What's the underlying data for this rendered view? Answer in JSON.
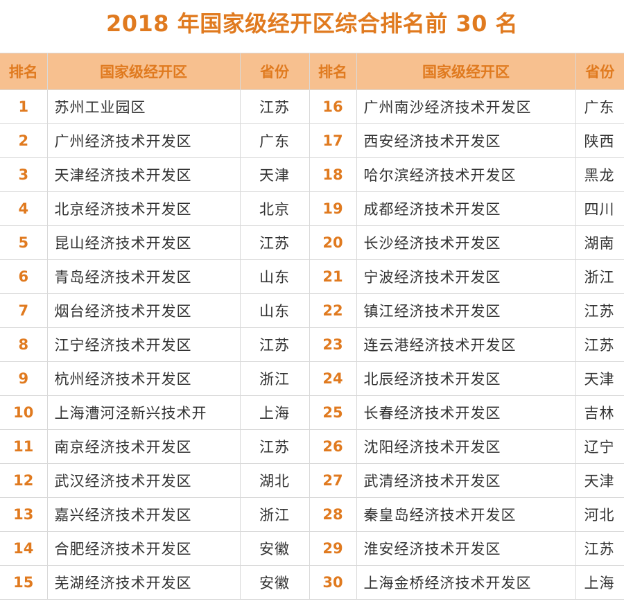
{
  "title": "2018 年国家级经开区综合排名前 30 名",
  "colors": {
    "accent": "#e07a1f",
    "header_bg": "#f7c08f",
    "text": "#333333",
    "grid": "#d9d9d9"
  },
  "table": {
    "headers": [
      "排名",
      "国家级经开区",
      "省份",
      "排名",
      "国家级经开区",
      "省份"
    ],
    "left": [
      {
        "rank": "1",
        "zone": "苏州工业园区",
        "province": "江苏"
      },
      {
        "rank": "2",
        "zone": "广州经济技术开发区",
        "province": "广东"
      },
      {
        "rank": "3",
        "zone": "天津经济技术开发区",
        "province": "天津"
      },
      {
        "rank": "4",
        "zone": "北京经济技术开发区",
        "province": "北京"
      },
      {
        "rank": "5",
        "zone": "昆山经济技术开发区",
        "province": "江苏"
      },
      {
        "rank": "6",
        "zone": "青岛经济技术开发区",
        "province": "山东"
      },
      {
        "rank": "7",
        "zone": "烟台经济技术开发区",
        "province": "山东"
      },
      {
        "rank": "8",
        "zone": "江宁经济技术开发区",
        "province": "江苏"
      },
      {
        "rank": "9",
        "zone": "杭州经济技术开发区",
        "province": "浙江"
      },
      {
        "rank": "10",
        "zone": "上海漕河泾新兴技术开",
        "province": "上海"
      },
      {
        "rank": "11",
        "zone": "南京经济技术开发区",
        "province": "江苏"
      },
      {
        "rank": "12",
        "zone": "武汉经济技术开发区",
        "province": "湖北"
      },
      {
        "rank": "13",
        "zone": "嘉兴经济技术开发区",
        "province": "浙江"
      },
      {
        "rank": "14",
        "zone": "合肥经济技术开发区",
        "province": "安徽"
      },
      {
        "rank": "15",
        "zone": "芜湖经济技术开发区",
        "province": "安徽"
      }
    ],
    "right": [
      {
        "rank": "16",
        "zone": "广州南沙经济技术开发区",
        "province": "广东"
      },
      {
        "rank": "17",
        "zone": "西安经济技术开发区",
        "province": "陕西"
      },
      {
        "rank": "18",
        "zone": "哈尔滨经济技术开发区",
        "province": "黑龙"
      },
      {
        "rank": "19",
        "zone": "成都经济技术开发区",
        "province": "四川"
      },
      {
        "rank": "20",
        "zone": "长沙经济技术开发区",
        "province": "湖南"
      },
      {
        "rank": "21",
        "zone": "宁波经济技术开发区",
        "province": "浙江"
      },
      {
        "rank": "22",
        "zone": "镇江经济技术开发区",
        "province": "江苏"
      },
      {
        "rank": "23",
        "zone": "连云港经济技术开发区",
        "province": "江苏"
      },
      {
        "rank": "24",
        "zone": "北辰经济技术开发区",
        "province": "天津"
      },
      {
        "rank": "25",
        "zone": "长春经济技术开发区",
        "province": "吉林"
      },
      {
        "rank": "26",
        "zone": "沈阳经济技术开发区",
        "province": "辽宁"
      },
      {
        "rank": "27",
        "zone": "武清经济技术开发区",
        "province": "天津"
      },
      {
        "rank": "28",
        "zone": "秦皇岛经济技术开发区",
        "province": "河北"
      },
      {
        "rank": "29",
        "zone": "淮安经济技术开发区",
        "province": "江苏"
      },
      {
        "rank": "30",
        "zone": "上海金桥经济技术开发区",
        "province": "上海"
      }
    ]
  }
}
